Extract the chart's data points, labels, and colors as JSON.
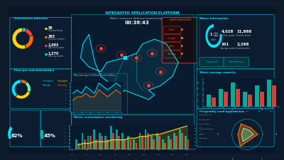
{
  "bg_outer": "#0d1b2a",
  "bg_panel": "#0a1628",
  "bg_card": "#0d2137",
  "bg_card2": "#091a2f",
  "accent_cyan": "#00e5ff",
  "accent_teal": "#00bfa5",
  "accent_orange": "#ff6d00",
  "accent_red": "#f44336",
  "accent_yellow": "#ffd600",
  "accent_green": "#69f0ae",
  "accent_purple": "#7c4dff",
  "text_light": "#b0bec5",
  "text_cyan": "#00e5ff",
  "title": "INTEGRATED APPLICATION PLATFORM",
  "left_panel_title1": "Distribution statistics",
  "left_panel_title2": "Flow per unit distribution",
  "center_title": "Water resource defense monitoring",
  "right_panel_title1": "Water information",
  "right_panel_title2": "Water storage capacity",
  "right_panel_title3": "Frequently used applications",
  "bottom_left_title": "Water consumption monitoring",
  "gauge1_values": [
    0.55,
    0.25,
    0.15,
    0.05
  ],
  "gauge1_colors": [
    "#ffd600",
    "#ff6d00",
    "#f44336",
    "#00e5ff"
  ],
  "donut2_values": [
    0.4,
    0.3,
    0.2,
    0.1
  ],
  "donut2_colors": [
    "#00e5ff",
    "#ffd600",
    "#69f0ae",
    "#ff6d00"
  ],
  "bar_categories": [
    "Cat1",
    "Cat2",
    "Cat3",
    "Cat4",
    "Cat5",
    "Cat6"
  ],
  "bar_values1": [
    4,
    6,
    8,
    5,
    7,
    9
  ],
  "bar_values2": [
    3,
    5,
    6,
    4,
    5,
    7
  ],
  "bar_colors1": "#00bfa5",
  "bar_colors2": "#f44336",
  "bottom_bars_x": [
    1,
    2,
    3,
    4,
    5,
    6,
    7,
    8,
    9,
    10,
    11,
    12,
    13,
    14,
    15,
    16,
    17,
    18,
    19,
    20
  ],
  "bottom_bars_h1": [
    3,
    5,
    4,
    6,
    5,
    4,
    7,
    6,
    5,
    4,
    3,
    5,
    6,
    4,
    5,
    3,
    4,
    5,
    6,
    4
  ],
  "bottom_bars_h2": [
    2,
    3,
    4,
    3,
    4,
    3,
    5,
    4,
    3,
    3,
    2,
    4,
    5,
    3,
    4,
    2,
    3,
    4,
    5,
    3
  ],
  "bottom_line": [
    2,
    3,
    3,
    4,
    4,
    4,
    5,
    5,
    5,
    6,
    6,
    7,
    7,
    8,
    8,
    9,
    10,
    11,
    12,
    13
  ],
  "spider_values": [
    0.7,
    0.5,
    0.8,
    0.6,
    0.9,
    0.4
  ],
  "spider_colors": [
    "#ff6d00",
    "#69f0ae"
  ],
  "map_border": "#00e5ff",
  "alarm_red": "#f44336",
  "time_display": "00:36:43",
  "stats": [
    "55",
    "263",
    "1,083",
    "1,370"
  ],
  "stat_labels": [
    "Flow monitoring",
    "Flow level number",
    "Day level number",
    "Running number"
  ],
  "water_info_vals": [
    "4,028",
    "11,868",
    "101",
    "2,268 1.1"
  ],
  "gauge_small1": 0.62,
  "gauge_small2": 0.45
}
